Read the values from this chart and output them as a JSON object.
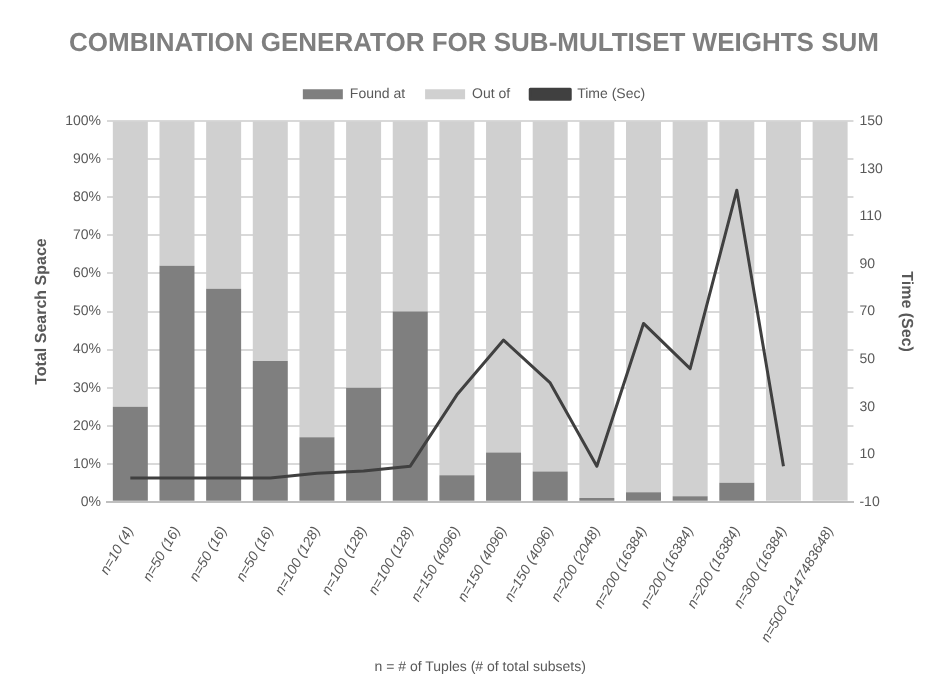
{
  "chart_data": {
    "type": "bar",
    "title": "COMBINATION GENERATOR FOR SUB-MULTISET WEIGHTS SUM",
    "xlabel": "n = # of Tuples (# of total subsets)",
    "ylabel": "Total Search Space",
    "y2label": "Time (Sec)",
    "categories": [
      "n=10 (4)",
      "n=50 (16)",
      "n=50 (16)",
      "n=50 (16)",
      "n=100 (128)",
      "n=100 (128)",
      "n=100 (128)",
      "n=150 (4096)",
      "n=150 (4096)",
      "n=150 (4096)",
      "n=200 (2048)",
      "n=200 (16384)",
      "n=200 (16384)",
      "n=200 (16384)",
      "n=300 (16384)",
      "n=500 (2147483648)"
    ],
    "stacked": true,
    "series": [
      {
        "name": "Found at",
        "color": "#7f7f7f",
        "values": [
          25,
          62,
          56,
          37,
          17,
          30,
          50,
          7,
          13,
          8,
          1,
          2.5,
          1.5,
          5,
          0,
          0
        ]
      },
      {
        "name": "Out of",
        "color": "#d0d0d0",
        "values": [
          75,
          38,
          44,
          63,
          83,
          70,
          50,
          93,
          87,
          92,
          99,
          97.5,
          98.5,
          95,
          100,
          100
        ]
      },
      {
        "name": "Time (Sec)",
        "type": "line",
        "axis": "y2",
        "color": "#404040",
        "values": [
          0,
          0,
          0,
          0,
          2,
          3,
          5,
          35,
          58,
          40,
          5,
          65,
          46,
          121,
          5,
          null
        ]
      }
    ],
    "ylim": [
      0,
      100
    ],
    "yticks": [
      {
        "value": 0,
        "label": "0%"
      },
      {
        "value": 10,
        "label": "10%"
      },
      {
        "value": 20,
        "label": "20%"
      },
      {
        "value": 30,
        "label": "30%"
      },
      {
        "value": 40,
        "label": "40%"
      },
      {
        "value": 50,
        "label": "50%"
      },
      {
        "value": 60,
        "label": "60%"
      },
      {
        "value": 70,
        "label": "70%"
      },
      {
        "value": 80,
        "label": "80%"
      },
      {
        "value": 90,
        "label": "90%"
      },
      {
        "value": 100,
        "label": "100%"
      }
    ],
    "y2lim": [
      -10,
      150
    ],
    "y2ticks": [
      -10,
      10,
      30,
      50,
      70,
      90,
      110,
      130,
      150
    ],
    "grid": "y",
    "legend": "top",
    "marker": "none"
  }
}
